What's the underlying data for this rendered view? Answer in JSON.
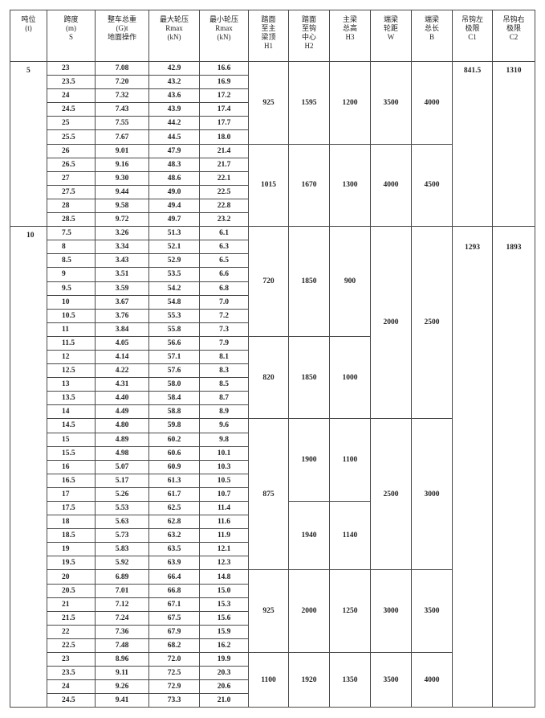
{
  "headers": [
    "吨位\n(t)",
    "跨度\n(m)\nS",
    "整车总重\n(G)t\n地面操作",
    "最大轮压\nRmax\n(kN)",
    "最小轮压\nRmax\n(kN)",
    "踏面\n至主\n梁顶\nH1",
    "踏面\n至钩\n中心\nH2",
    "主梁\n总高\nH3",
    "端梁\n轮距\nW",
    "端梁\n总长\nB",
    "吊钩左\n极限\nC1",
    "吊钩右\n极限\nC2"
  ],
  "groups": [
    {
      "tonnage": "5",
      "c1": "841.5",
      "c2": "1310",
      "rows": [
        [
          "23",
          "7.08",
          "42.9",
          "16.6"
        ],
        [
          "23.5",
          "7.20",
          "43.2",
          "16.9"
        ],
        [
          "24",
          "7.32",
          "43.6",
          "17.2"
        ],
        [
          "24.5",
          "7.43",
          "43.9",
          "17.4"
        ],
        [
          "25",
          "7.55",
          "44.2",
          "17.7"
        ],
        [
          "25.5",
          "7.67",
          "44.5",
          "18.0"
        ],
        [
          "26",
          "9.01",
          "47.9",
          "21.4"
        ],
        [
          "26.5",
          "9.16",
          "48.3",
          "21.7"
        ],
        [
          "27",
          "9.30",
          "48.6",
          "22.1"
        ],
        [
          "27.5",
          "9.44",
          "49.0",
          "22.5"
        ],
        [
          "28",
          "9.58",
          "49.4",
          "22.8"
        ],
        [
          "28.5",
          "9.72",
          "49.7",
          "23.2"
        ]
      ],
      "h1": [
        {
          "value": "925",
          "span": 6
        },
        {
          "value": "1015",
          "span": 6
        }
      ],
      "h2": [
        {
          "value": "1595",
          "span": 6
        },
        {
          "value": "1670",
          "span": 6
        }
      ],
      "h3": [
        {
          "value": "1200",
          "span": 6
        },
        {
          "value": "1300",
          "span": 6
        }
      ],
      "w": [
        {
          "value": "3500",
          "span": 6
        },
        {
          "value": "4000",
          "span": 6
        }
      ],
      "b": [
        {
          "value": "4000",
          "span": 6
        },
        {
          "value": "4500",
          "span": 6
        }
      ]
    },
    {
      "tonnage": "10",
      "c1": "1293",
      "c2": "1893",
      "rows": [
        [
          "7.5",
          "3.26",
          "51.3",
          "6.1"
        ],
        [
          "8",
          "3.34",
          "52.1",
          "6.3"
        ],
        [
          "8.5",
          "3.43",
          "52.9",
          "6.5"
        ],
        [
          "9",
          "3.51",
          "53.5",
          "6.6"
        ],
        [
          "9.5",
          "3.59",
          "54.2",
          "6.8"
        ],
        [
          "10",
          "3.67",
          "54.8",
          "7.0"
        ],
        [
          "10.5",
          "3.76",
          "55.3",
          "7.2"
        ],
        [
          "11",
          "3.84",
          "55.8",
          "7.3"
        ],
        [
          "11.5",
          "4.05",
          "56.6",
          "7.9"
        ],
        [
          "12",
          "4.14",
          "57.1",
          "8.1"
        ],
        [
          "12.5",
          "4.22",
          "57.6",
          "8.3"
        ],
        [
          "13",
          "4.31",
          "58.0",
          "8.5"
        ],
        [
          "13.5",
          "4.40",
          "58.4",
          "8.7"
        ],
        [
          "14",
          "4.49",
          "58.8",
          "8.9"
        ],
        [
          "14.5",
          "4.80",
          "59.8",
          "9.6"
        ],
        [
          "15",
          "4.89",
          "60.2",
          "9.8"
        ],
        [
          "15.5",
          "4.98",
          "60.6",
          "10.1"
        ],
        [
          "16",
          "5.07",
          "60.9",
          "10.3"
        ],
        [
          "16.5",
          "5.17",
          "61.3",
          "10.5"
        ],
        [
          "17",
          "5.26",
          "61.7",
          "10.7"
        ],
        [
          "17.5",
          "5.53",
          "62.5",
          "11.4"
        ],
        [
          "18",
          "5.63",
          "62.8",
          "11.6"
        ],
        [
          "18.5",
          "5.73",
          "63.2",
          "11.9"
        ],
        [
          "19",
          "5.83",
          "63.5",
          "12.1"
        ],
        [
          "19.5",
          "5.92",
          "63.9",
          "12.3"
        ],
        [
          "20",
          "6.89",
          "66.4",
          "14.8"
        ],
        [
          "20.5",
          "7.01",
          "66.8",
          "15.0"
        ],
        [
          "21",
          "7.12",
          "67.1",
          "15.3"
        ],
        [
          "21.5",
          "7.24",
          "67.5",
          "15.6"
        ],
        [
          "22",
          "7.36",
          "67.9",
          "15.9"
        ],
        [
          "22.5",
          "7.48",
          "68.2",
          "16.2"
        ],
        [
          "23",
          "8.96",
          "72.0",
          "19.9"
        ],
        [
          "23.5",
          "9.11",
          "72.5",
          "20.3"
        ],
        [
          "24",
          "9.26",
          "72.9",
          "20.6"
        ],
        [
          "24.5",
          "9.41",
          "73.3",
          "21.0"
        ]
      ],
      "h1": [
        {
          "value": "720",
          "span": 8
        },
        {
          "value": "820",
          "span": 6
        },
        {
          "value": "875",
          "span": 11
        },
        {
          "value": "925",
          "span": 6
        },
        {
          "value": "1100",
          "span": 4
        }
      ],
      "h2": [
        {
          "value": "1850",
          "span": 8
        },
        {
          "value": "1850",
          "span": 6
        },
        {
          "value": "1900",
          "span": 6
        },
        {
          "value": "1940",
          "span": 5
        },
        {
          "value": "2000",
          "span": 6
        },
        {
          "value": "1920",
          "span": 4
        }
      ],
      "h3": [
        {
          "value": "900",
          "span": 8
        },
        {
          "value": "1000",
          "span": 6
        },
        {
          "value": "1100",
          "span": 6
        },
        {
          "value": "1140",
          "span": 5
        },
        {
          "value": "1250",
          "span": 6
        },
        {
          "value": "1350",
          "span": 4
        }
      ],
      "w": [
        {
          "value": "2000",
          "span": 14
        },
        {
          "value": "2500",
          "span": 11
        },
        {
          "value": "3000",
          "span": 6
        },
        {
          "value": "3500",
          "span": 4
        }
      ],
      "b": [
        {
          "value": "2500",
          "span": 14
        },
        {
          "value": "3000",
          "span": 11
        },
        {
          "value": "3500",
          "span": 6
        },
        {
          "value": "4000",
          "span": 4
        }
      ]
    }
  ]
}
